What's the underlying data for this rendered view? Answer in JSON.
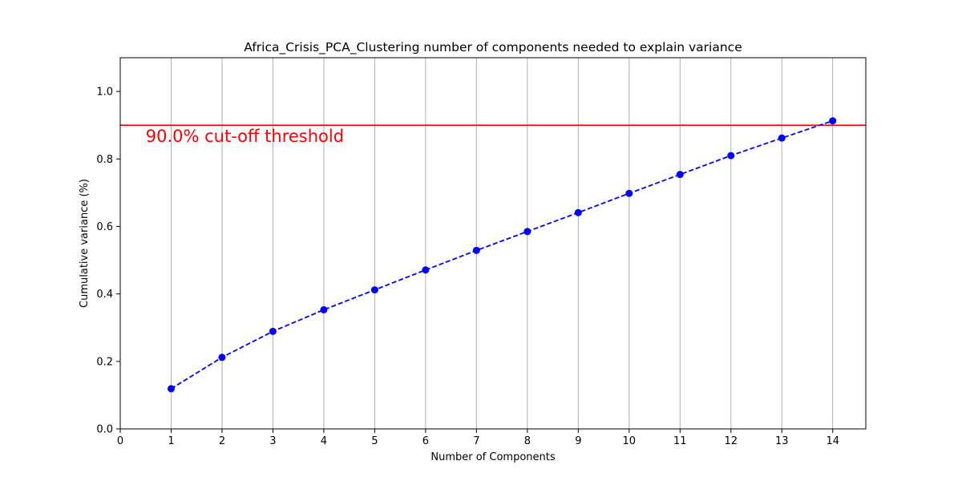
{
  "chart_data": {
    "type": "line",
    "title": "Africa_Crisis_PCA_Clustering number of components needed to explain variance",
    "xlabel": "Number of Components",
    "ylabel": "Cumulative variance (%)",
    "xlim": [
      0,
      14.65
    ],
    "ylim": [
      0,
      1.1
    ],
    "xticks": [
      0,
      1,
      2,
      3,
      4,
      5,
      6,
      7,
      8,
      9,
      10,
      11,
      12,
      13,
      14
    ],
    "yticks": [
      0.0,
      0.2,
      0.4,
      0.6,
      0.8,
      1.0
    ],
    "grid": "x-axis vertical lines",
    "x": [
      1,
      2,
      3,
      4,
      5,
      6,
      7,
      8,
      9,
      10,
      11,
      12,
      13,
      14
    ],
    "series": [
      {
        "values": [
          0.119,
          0.212,
          0.289,
          0.353,
          0.412,
          0.471,
          0.529,
          0.585,
          0.641,
          0.698,
          0.754,
          0.81,
          0.862,
          0.913
        ],
        "color": "#0000ff",
        "line_style": "dashed",
        "marker": "circle"
      }
    ],
    "threshold": {
      "y": 0.9,
      "label": "90.0% cut-off threshold",
      "label_x": 0.5,
      "color": "#ff0000"
    }
  }
}
